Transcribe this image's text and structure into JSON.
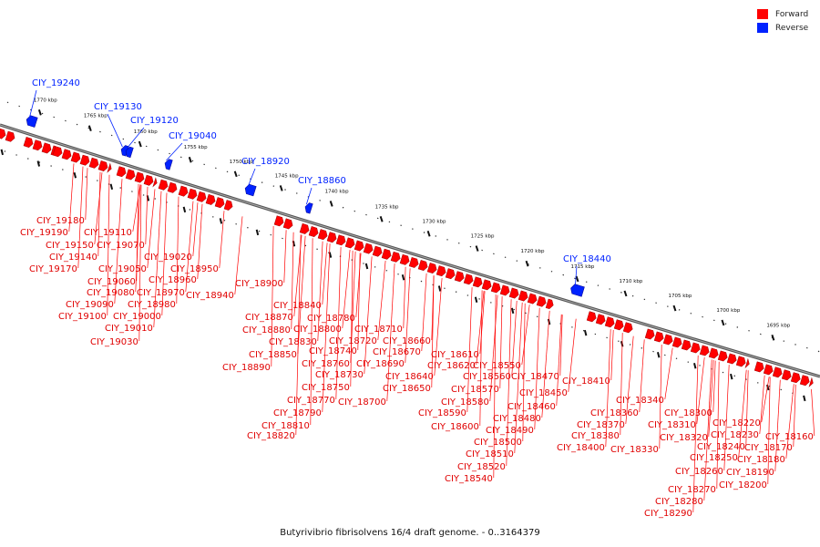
{
  "legend": {
    "forward_label": "Forward",
    "reverse_label": "Reverse",
    "forward_color": "#ff0000",
    "reverse_color": "#0022ff"
  },
  "caption": "Butyrivibrio fibrisolvens 16/4 draft genome. - 0..3164379",
  "scale": {
    "ticks": [
      "1770 kbp",
      "1765 kbp",
      "1760 kbp",
      "1755 kbp",
      "1750 kbp",
      "1745 kbp",
      "1740 kbp",
      "1735 kbp",
      "1730 kbp",
      "1725 kbp",
      "1720 kbp",
      "1715 kbp",
      "1710 kbp",
      "1705 kbp",
      "1700 kbp",
      "1695 kbp"
    ]
  },
  "reverse_labels": [
    "CIY_19240",
    "CIY_19130",
    "CIY_19120",
    "CIY_19040",
    "CIY_18920",
    "CIY_18860",
    "CIY_18440"
  ],
  "forward_labels": [
    "CIY_19180",
    "CIY_19190",
    "CIY_19150",
    "CIY_19140",
    "CIY_19170",
    "CIY_19110",
    "CIY_19070",
    "CIY_19020",
    "CIY_19050",
    "CIY_19060",
    "CIY_19080",
    "CIY_19090",
    "CIY_19100",
    "CIY_18960",
    "CIY_18970",
    "CIY_18980",
    "CIY_19000",
    "CIY_19010",
    "CIY_19030",
    "CIY_18950",
    "CIY_18940",
    "CIY_18900",
    "CIY_18840",
    "CIY_18870",
    "CIY_18880",
    "CIY_18830",
    "CIY_18850",
    "CIY_18890",
    "CIY_18780",
    "CIY_18800",
    "CIY_18740",
    "CIY_18760",
    "CIY_18730",
    "CIY_18750",
    "CIY_18770",
    "CIY_18790",
    "CIY_18810",
    "CIY_18820",
    "CIY_18720",
    "CIY_18710",
    "CIY_18690",
    "CIY_18700",
    "CIY_18660",
    "CIY_18670",
    "CIY_18640",
    "CIY_18650",
    "CIY_18610",
    "CIY_18620",
    "CIY_18600",
    "CIY_18590",
    "CIY_18580",
    "CIY_18570",
    "CIY_18560",
    "CIY_18550",
    "CIY_18540",
    "CIY_18520",
    "CIY_18510",
    "CIY_18500",
    "CIY_18490",
    "CIY_18480",
    "CIY_18470",
    "CIY_18460",
    "CIY_18450",
    "CIY_18410",
    "CIY_18360",
    "CIY_18370",
    "CIY_18380",
    "CIY_18400",
    "CIY_18340",
    "CIY_18330",
    "CIY_18320",
    "CIY_18310",
    "CIY_18300",
    "CIY_18290",
    "CIY_18280",
    "CIY_18270",
    "CIY_18260",
    "CIY_18250",
    "CIY_18240",
    "CIY_18230",
    "CIY_18220",
    "CIY_18200",
    "CIY_18190",
    "CIY_18180",
    "CIY_18170",
    "CIY_18160"
  ]
}
